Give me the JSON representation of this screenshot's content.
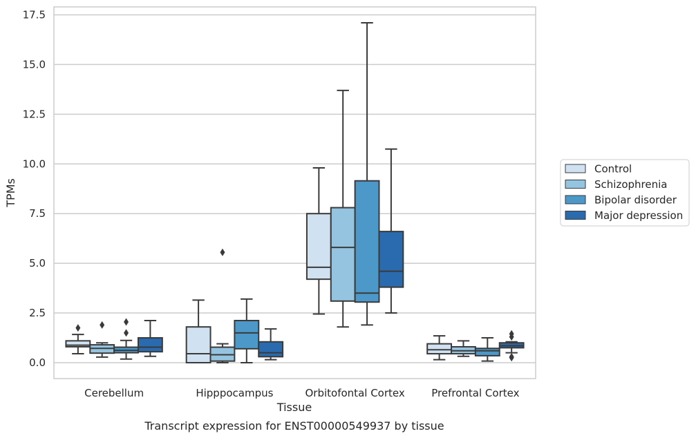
{
  "chart_data": {
    "type": "box",
    "xlabel": "Tissue",
    "ylabel": "TPMs",
    "caption": "Transcript expression for ENST00000549937 by tissue",
    "ylim": [
      -0.8,
      17.9
    ],
    "yticks": [
      0.0,
      2.5,
      5.0,
      7.5,
      10.0,
      12.5,
      15.0,
      17.5
    ],
    "ytick_labels": [
      "0.0",
      "2.5",
      "5.0",
      "7.5",
      "10.0",
      "12.5",
      "15.0",
      "17.5"
    ],
    "grid": "horizontal",
    "legend_position": "right",
    "categories": [
      "Cerebellum",
      "Hipppocampus",
      "Orbitofontal Cortex",
      "Prefrontal Cortex"
    ],
    "series": [
      {
        "name": "Control",
        "color": "#d0e1f2",
        "boxes": [
          {
            "whislo": 0.45,
            "q1": 0.8,
            "med": 0.88,
            "q3": 1.1,
            "whishi": 1.42,
            "fliers": [
              1.75
            ]
          },
          {
            "whislo": 0.0,
            "q1": 0.0,
            "med": 0.45,
            "q3": 1.8,
            "whishi": 3.15,
            "fliers": []
          },
          {
            "whislo": 2.45,
            "q1": 4.2,
            "med": 4.8,
            "q3": 7.5,
            "whishi": 9.8,
            "fliers": []
          },
          {
            "whislo": 0.15,
            "q1": 0.45,
            "med": 0.65,
            "q3": 0.95,
            "whishi": 1.35,
            "fliers": []
          }
        ]
      },
      {
        "name": "Schizophrenia",
        "color": "#94c4df",
        "boxes": [
          {
            "whislo": 0.28,
            "q1": 0.48,
            "med": 0.72,
            "q3": 0.9,
            "whishi": 1.0,
            "fliers": [
              1.9
            ]
          },
          {
            "whislo": 0.0,
            "q1": 0.08,
            "med": 0.4,
            "q3": 0.78,
            "whishi": 0.95,
            "fliers": [
              5.55
            ]
          },
          {
            "whislo": 1.8,
            "q1": 3.1,
            "med": 5.8,
            "q3": 7.8,
            "whishi": 13.7,
            "fliers": []
          },
          {
            "whislo": 0.32,
            "q1": 0.45,
            "med": 0.6,
            "q3": 0.8,
            "whishi": 1.1,
            "fliers": []
          }
        ]
      },
      {
        "name": "Bipolar disorder",
        "color": "#4b98c9",
        "boxes": [
          {
            "whislo": 0.18,
            "q1": 0.5,
            "med": 0.62,
            "q3": 0.78,
            "whishi": 1.12,
            "fliers": [
              1.5,
              2.05
            ]
          },
          {
            "whislo": 0.0,
            "q1": 0.7,
            "med": 1.5,
            "q3": 2.12,
            "whishi": 3.2,
            "fliers": []
          },
          {
            "whislo": 1.9,
            "q1": 3.05,
            "med": 3.5,
            "q3": 9.15,
            "whishi": 17.1,
            "fliers": []
          },
          {
            "whislo": 0.08,
            "q1": 0.35,
            "med": 0.6,
            "q3": 0.72,
            "whishi": 1.25,
            "fliers": []
          }
        ]
      },
      {
        "name": "Major depression",
        "color": "#2a6aae",
        "boxes": [
          {
            "whislo": 0.32,
            "q1": 0.55,
            "med": 0.78,
            "q3": 1.25,
            "whishi": 2.12,
            "fliers": []
          },
          {
            "whislo": 0.15,
            "q1": 0.3,
            "med": 0.5,
            "q3": 1.05,
            "whishi": 1.7,
            "fliers": []
          },
          {
            "whislo": 2.5,
            "q1": 3.8,
            "med": 4.6,
            "q3": 6.6,
            "whishi": 10.75,
            "fliers": []
          },
          {
            "whislo": 0.5,
            "q1": 0.75,
            "med": 0.85,
            "q3": 1.0,
            "whishi": 1.05,
            "fliers": [
              0.25,
              0.3,
              1.3,
              1.45
            ]
          }
        ]
      }
    ]
  }
}
